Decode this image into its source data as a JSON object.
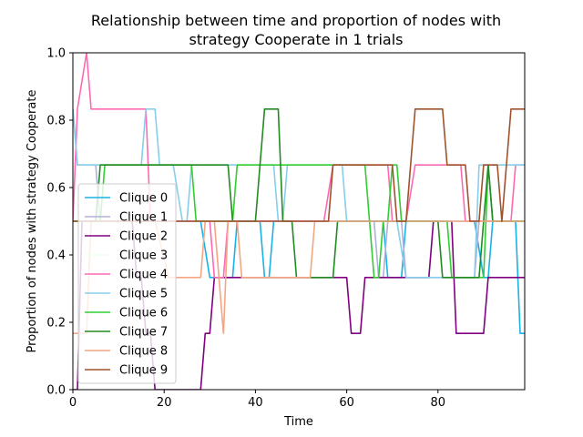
{
  "chart_data": {
    "type": "line",
    "title_lines": [
      "Relationship between time and proportion of nodes with",
      "strategy Cooperate in 1 trials"
    ],
    "xlabel": "Time",
    "ylabel": "Proportion of nodes with strategy Cooperate",
    "xlim": [
      0,
      99
    ],
    "ylim": [
      0,
      1.0
    ],
    "xticks": [
      0,
      20,
      40,
      60,
      80
    ],
    "xtick_labels": [
      "0",
      "20",
      "40",
      "60",
      "80"
    ],
    "yticks": [
      0,
      0.2,
      0.4,
      0.6,
      0.8,
      1.0
    ],
    "ytick_labels": [
      "0.0",
      "0.2",
      "0.4",
      "0.6",
      "0.8",
      "1.0"
    ],
    "grid": false,
    "legend_position": "lower-left",
    "series": [
      {
        "name": "Clique 0",
        "color": "#1ab2e6",
        "points": [
          [
            0,
            0.5
          ],
          [
            28,
            0.5
          ],
          [
            30,
            0.333
          ],
          [
            35,
            0.333
          ],
          [
            36,
            0.5
          ],
          [
            41,
            0.5
          ],
          [
            42,
            0.333
          ],
          [
            43,
            0.333
          ],
          [
            44,
            0.5
          ],
          [
            68,
            0.5
          ],
          [
            69,
            0.333
          ],
          [
            72,
            0.333
          ],
          [
            73,
            0.5
          ],
          [
            88,
            0.5
          ],
          [
            90,
            0.333
          ],
          [
            91,
            0.333
          ],
          [
            92,
            0.5
          ],
          [
            97,
            0.5
          ],
          [
            98,
            0.167
          ],
          [
            99,
            0.167
          ]
        ]
      },
      {
        "name": "Clique 1",
        "color": "#b0b0d8",
        "points": [
          [
            0,
            0.833
          ],
          [
            1,
            0.667
          ],
          [
            5,
            0.667
          ],
          [
            6,
            0.5
          ],
          [
            66,
            0.5
          ],
          [
            67,
            0.333
          ],
          [
            68,
            0.333
          ],
          [
            69,
            0.5
          ],
          [
            72,
            0.5
          ],
          [
            73,
            0.333
          ],
          [
            88,
            0.333
          ],
          [
            89,
            0.5
          ],
          [
            99,
            0.5
          ]
        ]
      },
      {
        "name": "Clique 2",
        "color": "#800080",
        "points": [
          [
            0,
            0
          ],
          [
            1,
            0
          ],
          [
            2,
            0.5
          ],
          [
            13,
            0.5
          ],
          [
            14,
            0.333
          ],
          [
            15,
            0.333
          ],
          [
            16,
            0.167
          ],
          [
            17,
            0.167
          ],
          [
            18,
            0.0
          ],
          [
            28,
            0.0
          ],
          [
            29,
            0.167
          ],
          [
            30,
            0.167
          ],
          [
            31,
            0.333
          ],
          [
            60,
            0.333
          ],
          [
            61,
            0.167
          ],
          [
            63,
            0.167
          ],
          [
            64,
            0.333
          ],
          [
            78,
            0.333
          ],
          [
            79,
            0.5
          ],
          [
            83,
            0.5
          ],
          [
            84,
            0.167
          ],
          [
            90,
            0.167
          ],
          [
            91,
            0.333
          ],
          [
            99,
            0.333
          ]
        ]
      },
      {
        "name": "Clique 3",
        "color": "#f0fff0",
        "points": [
          [
            0,
            0.5
          ],
          [
            99,
            0.5
          ]
        ]
      },
      {
        "name": "Clique 4",
        "color": "#ff69b4",
        "points": [
          [
            0,
            0.5
          ],
          [
            1,
            0.833
          ],
          [
            3,
            1.0
          ],
          [
            4,
            0.833
          ],
          [
            16,
            0.833
          ],
          [
            17,
            0.5
          ],
          [
            30,
            0.5
          ],
          [
            31,
            0.333
          ],
          [
            33,
            0.333
          ],
          [
            34,
            0.5
          ],
          [
            55,
            0.5
          ],
          [
            57,
            0.667
          ],
          [
            69,
            0.667
          ],
          [
            70,
            0.5
          ],
          [
            73,
            0.5
          ],
          [
            75,
            0.667
          ],
          [
            85,
            0.667
          ],
          [
            86,
            0.5
          ],
          [
            96,
            0.5
          ],
          [
            97,
            0.667
          ],
          [
            99,
            0.667
          ]
        ]
      },
      {
        "name": "Clique 5",
        "color": "#87ceeb",
        "points": [
          [
            0,
            0.833
          ],
          [
            1,
            0.667
          ],
          [
            15,
            0.667
          ],
          [
            16,
            0.833
          ],
          [
            18,
            0.833
          ],
          [
            19,
            0.667
          ],
          [
            22,
            0.667
          ],
          [
            24,
            0.5
          ],
          [
            25,
            0.5
          ],
          [
            26,
            0.667
          ],
          [
            44,
            0.667
          ],
          [
            45,
            0.5
          ],
          [
            46,
            0.5
          ],
          [
            47,
            0.667
          ],
          [
            59,
            0.667
          ],
          [
            60,
            0.5
          ],
          [
            71,
            0.5
          ],
          [
            73,
            0.333
          ],
          [
            88,
            0.333
          ],
          [
            89,
            0.667
          ],
          [
            99,
            0.667
          ]
        ]
      },
      {
        "name": "Clique 6",
        "color": "#32cd32",
        "points": [
          [
            0,
            0.5
          ],
          [
            6,
            0.5
          ],
          [
            7,
            0.667
          ],
          [
            26,
            0.667
          ],
          [
            27,
            0.5
          ],
          [
            35,
            0.5
          ],
          [
            36,
            0.667
          ],
          [
            64,
            0.667
          ],
          [
            65,
            0.5
          ],
          [
            66,
            0.333
          ],
          [
            67,
            0.333
          ],
          [
            68,
            0.5
          ],
          [
            69,
            0.5
          ],
          [
            70,
            0.667
          ],
          [
            71,
            0.667
          ],
          [
            72,
            0.5
          ],
          [
            82,
            0.5
          ],
          [
            83,
            0.333
          ],
          [
            90,
            0.333
          ],
          [
            91,
            0.667
          ],
          [
            92,
            0.5
          ],
          [
            99,
            0.5
          ]
        ]
      },
      {
        "name": "Clique 7",
        "color": "#228b22",
        "points": [
          [
            0,
            0.5
          ],
          [
            5,
            0.5
          ],
          [
            6,
            0.667
          ],
          [
            34,
            0.667
          ],
          [
            35,
            0.5
          ],
          [
            40,
            0.5
          ],
          [
            42,
            0.833
          ],
          [
            45,
            0.833
          ],
          [
            46,
            0.5
          ],
          [
            48,
            0.5
          ],
          [
            49,
            0.333
          ],
          [
            57,
            0.333
          ],
          [
            58,
            0.5
          ],
          [
            80,
            0.5
          ],
          [
            81,
            0.333
          ],
          [
            89,
            0.333
          ],
          [
            90,
            0.5
          ],
          [
            91,
            0.667
          ],
          [
            92,
            0.5
          ],
          [
            99,
            0.5
          ]
        ]
      },
      {
        "name": "Clique 8",
        "color": "#f4a582",
        "points": [
          [
            0,
            0.167
          ],
          [
            3,
            0.167
          ],
          [
            4,
            0.5
          ],
          [
            18,
            0.5
          ],
          [
            21,
            0.333
          ],
          [
            28,
            0.333
          ],
          [
            29,
            0.5
          ],
          [
            31,
            0.5
          ],
          [
            33,
            0.167
          ],
          [
            34,
            0.5
          ],
          [
            36,
            0.5
          ],
          [
            37,
            0.333
          ],
          [
            52,
            0.333
          ],
          [
            53,
            0.5
          ],
          [
            99,
            0.5
          ]
        ]
      },
      {
        "name": "Clique 9",
        "color": "#a0522d",
        "points": [
          [
            0,
            0.5
          ],
          [
            56,
            0.5
          ],
          [
            57,
            0.667
          ],
          [
            70,
            0.667
          ],
          [
            71,
            0.5
          ],
          [
            73,
            0.5
          ],
          [
            74,
            0.667
          ],
          [
            75,
            0.833
          ],
          [
            81,
            0.833
          ],
          [
            82,
            0.667
          ],
          [
            86,
            0.667
          ],
          [
            87,
            0.5
          ],
          [
            89,
            0.5
          ],
          [
            90,
            0.667
          ],
          [
            93,
            0.667
          ],
          [
            94,
            0.5
          ],
          [
            95,
            0.667
          ],
          [
            96,
            0.833
          ],
          [
            99,
            0.833
          ]
        ]
      }
    ]
  }
}
